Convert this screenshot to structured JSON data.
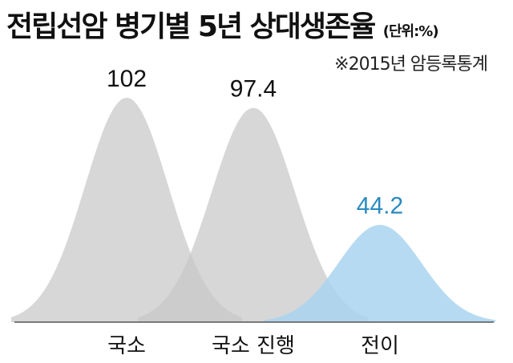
{
  "title": "전립선암 병기별 5년 상대생존율",
  "unit": "(단위:%)",
  "source": "※2015년 암등록통계",
  "colors": {
    "grey": "#c8c8c8",
    "blue": "#a9d3ef",
    "blue_label": "#2a8bbf",
    "text": "#111111"
  },
  "chart_data": {
    "type": "area",
    "categories": [
      "국소",
      "국소 진행",
      "전이"
    ],
    "values": [
      102,
      97.4,
      44.2
    ],
    "value_labels": [
      "102",
      "97.4",
      "44.2"
    ],
    "ylim": [
      0,
      102
    ],
    "grid": false,
    "legend": "none"
  }
}
